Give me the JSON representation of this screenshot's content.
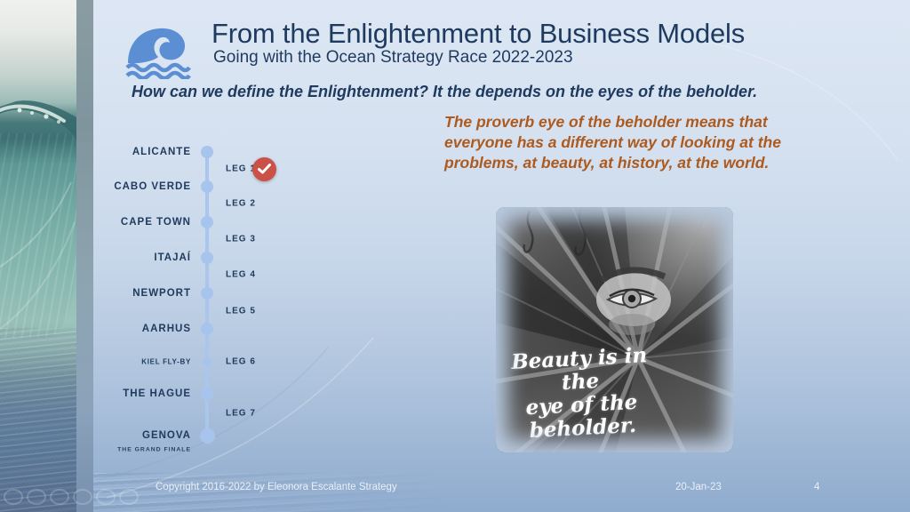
{
  "slide": {
    "title": "From the Enlightenment to Business Models",
    "subtitle": "Going with the Ocean Strategy Race 2022-2023",
    "question": "How can we define the Enlightenment? It the depends on the eyes of the beholder.",
    "proverb_lines": [
      "The proverb eye of the beholder means that",
      "everyone has a different way of looking at the",
      "problems, at beauty, at history, at the world."
    ]
  },
  "timeline": {
    "stops": [
      {
        "name": "ALICANTE",
        "size": "normal"
      },
      {
        "name": "CABO VERDE",
        "size": "normal"
      },
      {
        "name": "CAPE TOWN",
        "size": "normal"
      },
      {
        "name": "ITAJAÍ",
        "size": "normal"
      },
      {
        "name": "NEWPORT",
        "size": "normal"
      },
      {
        "name": "AARHUS",
        "size": "normal"
      },
      {
        "name": "KIEL FLY-BY",
        "size": "small"
      },
      {
        "name": "THE HAGUE",
        "size": "normal"
      },
      {
        "name": "GENOVA",
        "size": "large",
        "sub": "THE GRAND FINALE"
      }
    ],
    "legs": [
      {
        "label": "LEG 1",
        "checked": true
      },
      {
        "label": "LEG 2",
        "checked": false
      },
      {
        "label": "LEG 3",
        "checked": false
      },
      {
        "label": "LEG 4",
        "checked": false
      },
      {
        "label": "LEG 5",
        "checked": false
      },
      {
        "label": "LEG 6",
        "checked": false
      },
      {
        "label": "LEG 7",
        "checked": false
      }
    ]
  },
  "quote_image": {
    "caption_lines": [
      "Beauty is in the",
      "eye of the",
      "beholder."
    ]
  },
  "footer": {
    "copyright": "Copyright 2016-2022 by Eleonora Escalante Strategy",
    "date": "20-Jan-23",
    "page": "4"
  },
  "icons": {
    "logo": "wave-icon",
    "badge": "checkmark-icon"
  },
  "colors": {
    "accent_blue": "#5b8ed2",
    "navy": "#1e3a5f",
    "orange": "#ad5a1e",
    "timeline_blue": "#a7c4ec",
    "badge_red": "#cb5148",
    "background_top": "#dde7f4",
    "background_bottom": "#8fabce"
  }
}
